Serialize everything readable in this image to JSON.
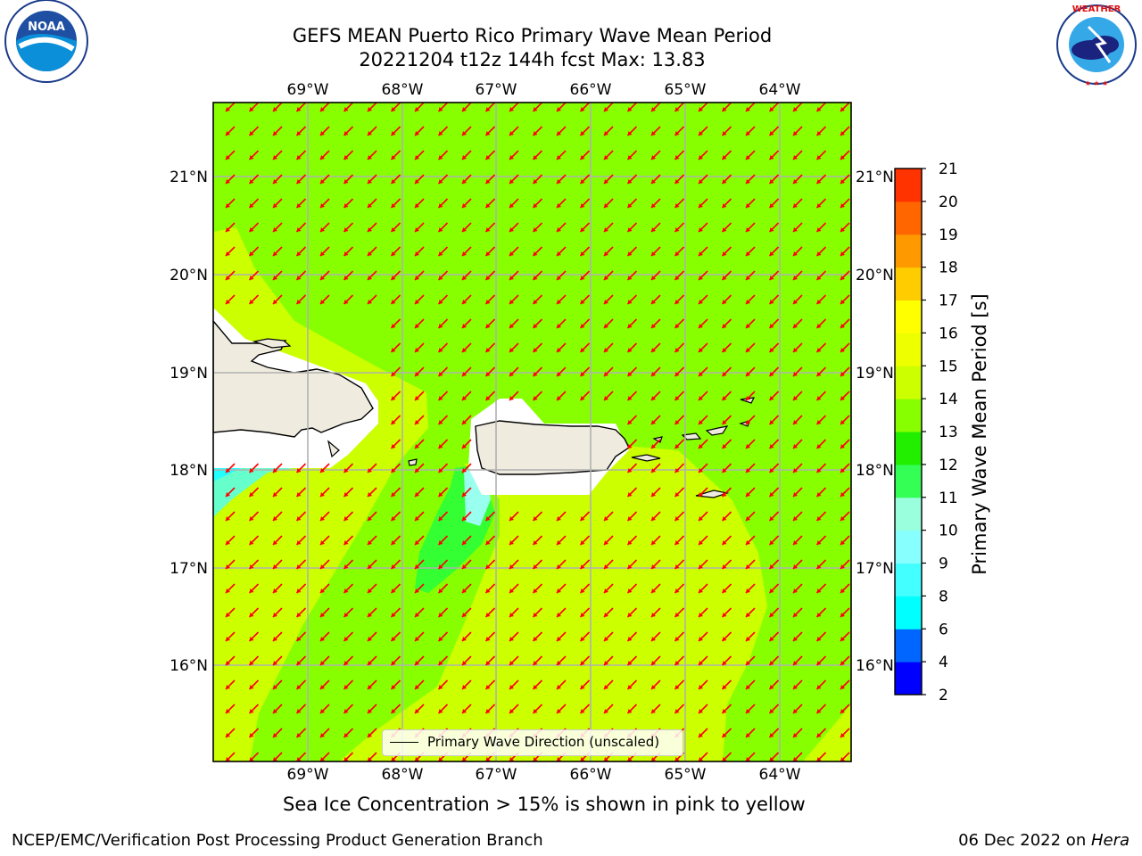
{
  "header": {
    "title_line1": "GEFS MEAN Puerto Rico Primary Wave Mean Period",
    "title_line2": "20221204 t12z 144h fcst   Max: 13.83"
  },
  "logos": {
    "left": "NOAA",
    "left_ring_text": "NATIONAL OCEANIC AND ATMOSPHERIC ADMINISTRATION · U.S. DEPARTMENT OF COMMERCE",
    "right_ring_text": "NATIONAL WEATHER SERVICE"
  },
  "map": {
    "lon_ticks": [
      "69°W",
      "68°W",
      "67°W",
      "66°W",
      "65°W",
      "64°W"
    ],
    "lat_ticks": [
      "21°N",
      "20°N",
      "19°N",
      "18°N",
      "17°N",
      "16°N"
    ],
    "arrow_color": "#ff0000",
    "land_color": "#efecdf",
    "legend_label": "Primary Wave Direction (unscaled)"
  },
  "colorbar": {
    "label": "Primary Wave Mean Period [s]",
    "ticks": [
      "2",
      "4",
      "6",
      "8",
      "9",
      "10",
      "11",
      "12",
      "13",
      "14",
      "15",
      "16",
      "17",
      "18",
      "19",
      "20",
      "21"
    ],
    "colors": [
      "#0000ff",
      "#0066ff",
      "#00ffff",
      "#44ffff",
      "#88ffff",
      "#99ffdd",
      "#33ff55",
      "#22ee00",
      "#88ff00",
      "#ccff00",
      "#eeff00",
      "#ffff00",
      "#ffcc00",
      "#ff9900",
      "#ff6600",
      "#ff3300",
      "#ff0000"
    ]
  },
  "subtitle": "Sea Ice Concentration > 15% is shown in pink to yellow",
  "footer": {
    "left": "NCEP/EMC/Verification Post Processing Product Generation Branch",
    "right_date": "06 Dec 2022 on ",
    "right_host": "Hera"
  }
}
